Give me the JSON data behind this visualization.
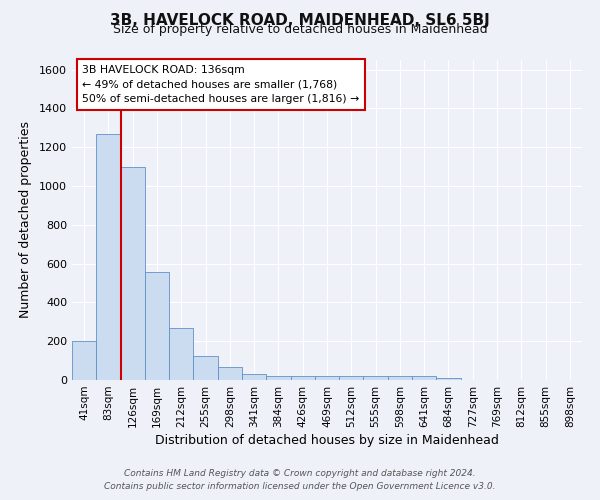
{
  "title": "3B, HAVELOCK ROAD, MAIDENHEAD, SL6 5BJ",
  "subtitle": "Size of property relative to detached houses in Maidenhead",
  "xlabel": "Distribution of detached houses by size in Maidenhead",
  "ylabel": "Number of detached properties",
  "bar_color": "#ccdcf0",
  "bar_edge_color": "#6090c8",
  "background_color": "#eef2f8",
  "grid_color": "#ffffff",
  "categories": [
    "41sqm",
    "83sqm",
    "126sqm",
    "169sqm",
    "212sqm",
    "255sqm",
    "298sqm",
    "341sqm",
    "384sqm",
    "426sqm",
    "469sqm",
    "512sqm",
    "555sqm",
    "598sqm",
    "641sqm",
    "684sqm",
    "727sqm",
    "769sqm",
    "812sqm",
    "855sqm",
    "898sqm"
  ],
  "values": [
    200,
    1270,
    1100,
    555,
    270,
    125,
    65,
    30,
    20,
    20,
    20,
    20,
    20,
    20,
    20,
    10,
    0,
    0,
    0,
    0,
    0
  ],
  "ylim": [
    0,
    1650
  ],
  "yticks": [
    0,
    200,
    400,
    600,
    800,
    1000,
    1200,
    1400,
    1600
  ],
  "vline_color": "#cc0000",
  "annotation_title": "3B HAVELOCK ROAD: 136sqm",
  "annotation_line1": "← 49% of detached houses are smaller (1,768)",
  "annotation_line2": "50% of semi-detached houses are larger (1,816) →",
  "annotation_box_edge": "#cc0000",
  "footnote1": "Contains HM Land Registry data © Crown copyright and database right 2024.",
  "footnote2": "Contains public sector information licensed under the Open Government Licence v3.0."
}
